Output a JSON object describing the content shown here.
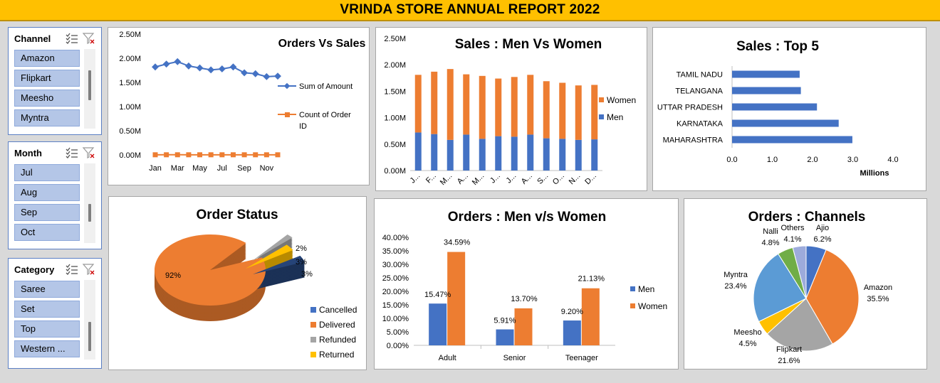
{
  "banner": {
    "title": "VRINDA STORE ANNUAL REPORT 2022"
  },
  "slicers": [
    {
      "key": "channel",
      "title": "Channel",
      "items": [
        "Amazon",
        "Flipkart",
        "Meesho",
        "Myntra"
      ]
    },
    {
      "key": "month",
      "title": "Month",
      "items": [
        "Jul",
        "Aug",
        "Sep",
        "Oct"
      ]
    },
    {
      "key": "category",
      "title": "Category",
      "items": [
        "Saree",
        "Set",
        "Top",
        "Western ..."
      ]
    }
  ],
  "icons": {
    "multiselect": "multi-select-icon",
    "clear": "clear-filter-icon"
  },
  "colors": {
    "blue": "#4472c4",
    "orange": "#ed7d31",
    "gray": "#a5a5a5",
    "yellow": "#ffc000",
    "navy": "#264478",
    "lightblue": "#5b9bd5",
    "green": "#70ad47",
    "lavender": "#9dabdb",
    "banner": "#ffc000"
  },
  "chart_data": [
    {
      "id": "orders_vs_sales",
      "type": "line",
      "title": "Orders Vs Sales",
      "x": [
        "Jan",
        "Feb",
        "Mar",
        "Apr",
        "May",
        "Jun",
        "Jul",
        "Aug",
        "Sep",
        "Oct",
        "Nov",
        "Dec"
      ],
      "xticks": [
        "Jan",
        "Mar",
        "May",
        "Jul",
        "Sep",
        "Nov"
      ],
      "yticks": [
        "0.00M",
        "0.50M",
        "1.00M",
        "1.50M",
        "2.00M",
        "2.50M"
      ],
      "ylim": [
        0,
        2500000
      ],
      "series": [
        {
          "name": "Sum of Amount",
          "values": [
            1820000,
            1880000,
            1930000,
            1840000,
            1800000,
            1760000,
            1780000,
            1820000,
            1700000,
            1680000,
            1620000,
            1630000
          ]
        },
        {
          "name": "Count of Order ID",
          "values": [
            2700,
            2800,
            2900,
            2750,
            2700,
            2650,
            2680,
            2750,
            2600,
            2550,
            2500,
            2500
          ]
        }
      ],
      "legend": "right"
    },
    {
      "id": "sales_men_women",
      "type": "bar",
      "stacked": true,
      "title": "Sales : Men Vs Women",
      "categories": [
        "J...",
        "F...",
        "M...",
        "A...",
        "M...",
        "J...",
        "J...",
        "A...",
        "S...",
        "O...",
        "N...",
        "D..."
      ],
      "yticks": [
        "0.00M",
        "0.50M",
        "1.00M",
        "1.50M",
        "2.00M",
        "2.50M"
      ],
      "ylim": [
        0,
        2500000
      ],
      "series": [
        {
          "name": "Men",
          "values": [
            720000,
            690000,
            580000,
            680000,
            600000,
            650000,
            640000,
            680000,
            610000,
            600000,
            580000,
            590000
          ]
        },
        {
          "name": "Women",
          "values": [
            1090000,
            1180000,
            1340000,
            1140000,
            1190000,
            1090000,
            1130000,
            1130000,
            1080000,
            1060000,
            1030000,
            1030000
          ]
        }
      ],
      "legend": "right"
    },
    {
      "id": "sales_top5",
      "type": "bar",
      "orientation": "horizontal",
      "title": "Sales : Top 5",
      "categories": [
        "TAMIL NADU",
        "TELANGANA",
        "UTTAR PRADESH",
        "KARNATAKA",
        "MAHARASHTRA"
      ],
      "values": [
        1.68,
        1.71,
        2.11,
        2.65,
        2.99
      ],
      "xticks": [
        "0.0",
        "1.0",
        "2.0",
        "3.0",
        "4.0"
      ],
      "xlim": [
        0,
        4
      ],
      "xlabel": "Millions"
    },
    {
      "id": "order_status",
      "type": "pie",
      "title": "Order  Status",
      "labels": [
        "Cancelled",
        "Delivered",
        "Refunded",
        "Returned"
      ],
      "values": [
        3,
        92,
        2,
        3
      ],
      "value_labels": [
        "3%",
        "92%",
        "2%",
        "3%"
      ],
      "legend": "bottom-right"
    },
    {
      "id": "orders_men_women",
      "type": "bar",
      "title": "Orders : Men  v/s  Women",
      "categories": [
        "Adult",
        "Senior",
        "Teenager"
      ],
      "yticks": [
        "0.00%",
        "5.00%",
        "10.00%",
        "15.00%",
        "20.00%",
        "25.00%",
        "30.00%",
        "35.00%",
        "40.00%"
      ],
      "ylim": [
        0,
        40
      ],
      "series": [
        {
          "name": "Men",
          "values": [
            15.47,
            5.91,
            9.2
          ],
          "labels": [
            "15.47%",
            "5.91%",
            "9.20%"
          ]
        },
        {
          "name": "Women",
          "values": [
            34.59,
            13.7,
            21.13
          ],
          "labels": [
            "34.59%",
            "13.70%",
            "21.13%"
          ]
        }
      ],
      "legend": "right"
    },
    {
      "id": "orders_channels",
      "type": "pie",
      "title": "Orders : Channels",
      "labels": [
        "Ajio",
        "Amazon",
        "Flipkart",
        "Meesho",
        "Myntra",
        "Nalli",
        "Others"
      ],
      "values": [
        6.2,
        35.5,
        21.6,
        4.5,
        23.4,
        4.8,
        4.1
      ],
      "value_labels": [
        "6.2%",
        "35.5%",
        "21.6%",
        "4.5%",
        "23.4%",
        "4.8%",
        "4.1%"
      ]
    }
  ]
}
